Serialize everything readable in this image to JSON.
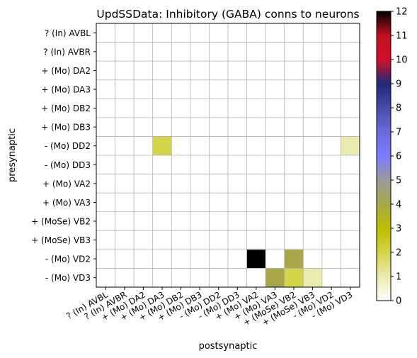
{
  "chart_data": {
    "type": "heatmap",
    "title": "UpdSSData: Inhibitory (GABA) conns to neurons",
    "xlabel": "postsynaptic",
    "ylabel": "presynaptic",
    "rows": [
      "? (In) AVBL",
      "? (In) AVBR",
      "+ (Mo) DA2",
      "+ (Mo) DA3",
      "+ (Mo) DB2",
      "+ (Mo) DB3",
      "- (Mo) DD2",
      "- (Mo) DD3",
      "+ (Mo) VA2",
      "+ (Mo) VA3",
      "+ (MoSe) VB2",
      "+ (MoSe) VB3",
      "- (Mo) VD2",
      "- (Mo) VD3"
    ],
    "columns": [
      "? (In) AVBL",
      "? (In) AVBR",
      "+ (Mo) DA2",
      "+ (Mo) DA3",
      "+ (Mo) DB2",
      "+ (Mo) DB3",
      "- (Mo) DD2",
      "- (Mo) DD3",
      "+ (Mo) VA2",
      "+ (Mo) VA3",
      "+ (MoSe) VB2",
      "+ (MoSe) VB3",
      "- (Mo) VD2",
      "- (Mo) VD3"
    ],
    "cells": [
      {
        "row": "- (Mo) DD2",
        "col": "+ (Mo) DA3",
        "value": 2
      },
      {
        "row": "- (Mo) DD2",
        "col": "- (Mo) VD3",
        "value": 1
      },
      {
        "row": "- (Mo) VD2",
        "col": "+ (Mo) VA2",
        "value": 12
      },
      {
        "row": "- (Mo) VD2",
        "col": "+ (MoSe) VB2",
        "value": 4
      },
      {
        "row": "- (Mo) VD3",
        "col": "+ (Mo) VA3",
        "value": 4
      },
      {
        "row": "- (Mo) VD3",
        "col": "+ (MoSe) VB2",
        "value": 2
      },
      {
        "row": "- (Mo) VD3",
        "col": "+ (MoSe) VB3",
        "value": 1
      }
    ],
    "colorbar": {
      "vmin": 0,
      "vmax": 12,
      "ticks": [
        "0",
        "1",
        "2",
        "3",
        "4",
        "5",
        "6",
        "7",
        "8",
        "9",
        "10",
        "11",
        "12"
      ],
      "stops": [
        {
          "v": 0,
          "color": "#ffffff"
        },
        {
          "v": 1,
          "color": "#ebebb0"
        },
        {
          "v": 2,
          "color": "#d4d448"
        },
        {
          "v": 3,
          "color": "#bdbd00"
        },
        {
          "v": 4,
          "color": "#a8a84a"
        },
        {
          "v": 5,
          "color": "#9a9a9a"
        },
        {
          "v": 6,
          "color": "#7b7bff"
        },
        {
          "v": 7,
          "color": "#6a6add"
        },
        {
          "v": 8,
          "color": "#4a4aa8"
        },
        {
          "v": 9,
          "color": "#1e2a78"
        },
        {
          "v": 10,
          "color": "#d0102a"
        },
        {
          "v": 11,
          "color": "#c01020"
        },
        {
          "v": 12,
          "color": "#000000"
        }
      ]
    },
    "grid": true
  }
}
